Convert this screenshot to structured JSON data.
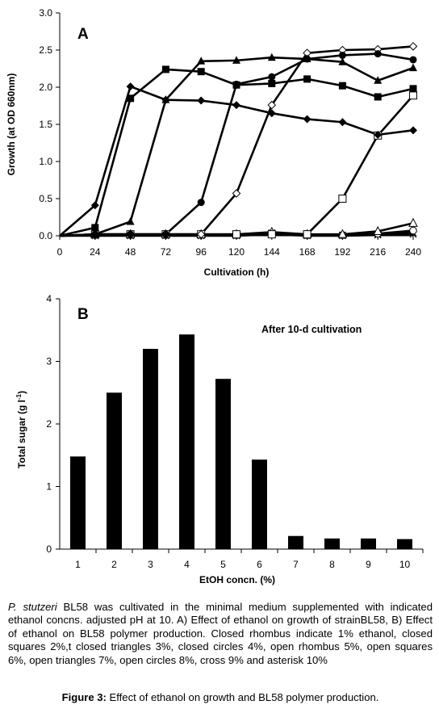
{
  "chart_data": [
    {
      "type": "line",
      "panel_label": "A",
      "xlabel": "Cultivation (h)",
      "ylabel": "Growth (at OD 660nm)",
      "xlim": [
        0,
        240
      ],
      "ylim": [
        0,
        3.0
      ],
      "xticks": [
        0,
        24,
        48,
        72,
        96,
        120,
        144,
        168,
        192,
        216,
        240
      ],
      "yticks": [
        "0.0",
        "0.5",
        "1.0",
        "1.5",
        "2.0",
        "2.5",
        "3.0"
      ],
      "x": [
        0,
        24,
        48,
        72,
        96,
        120,
        144,
        168,
        192,
        216,
        240
      ],
      "series": [
        {
          "marker": "closed-rhombus",
          "values": [
            0,
            0.41,
            2.01,
            1.83,
            1.82,
            1.76,
            1.65,
            1.57,
            1.53,
            1.36,
            1.42
          ]
        },
        {
          "marker": "closed-square",
          "values": [
            0,
            0.11,
            1.85,
            2.24,
            2.21,
            2.03,
            2.05,
            2.11,
            2.02,
            1.87,
            1.98
          ]
        },
        {
          "marker": "closed-triangle",
          "values": [
            0,
            0.02,
            0.19,
            1.83,
            2.35,
            2.36,
            2.4,
            2.38,
            2.34,
            2.09,
            2.26
          ]
        },
        {
          "marker": "closed-circle",
          "values": [
            0,
            0.02,
            0.02,
            0.02,
            0.45,
            2.04,
            2.14,
            2.38,
            2.43,
            2.45,
            2.37
          ]
        },
        {
          "marker": "open-rhombus",
          "values": [
            0,
            0.02,
            0.02,
            0.02,
            0.02,
            0.57,
            1.76,
            2.46,
            2.5,
            2.51,
            2.55
          ]
        },
        {
          "marker": "open-square",
          "values": [
            0,
            0.02,
            0.02,
            0.02,
            0.02,
            0.02,
            0.02,
            0.02,
            0.5,
            1.35,
            1.89
          ]
        },
        {
          "marker": "open-triangle",
          "values": [
            0,
            0.02,
            0.02,
            0.02,
            0.02,
            0.02,
            0.05,
            0.02,
            0.02,
            0.06,
            0.17
          ]
        },
        {
          "marker": "open-circle",
          "values": [
            0,
            0.01,
            0.01,
            0.01,
            0.01,
            0.01,
            0.03,
            0.01,
            0.01,
            0.03,
            0.07
          ]
        },
        {
          "marker": "cross",
          "values": [
            0,
            0.01,
            0.01,
            0.01,
            0.01,
            0.01,
            0.04,
            0.01,
            0.01,
            0.02,
            0.04
          ]
        },
        {
          "marker": "asterisk",
          "values": [
            0,
            0.0,
            0.0,
            0.0,
            0.0,
            0.0,
            0.02,
            0.0,
            0.0,
            0.01,
            0.02
          ]
        }
      ],
      "grid": false
    },
    {
      "type": "bar",
      "panel_label": "B",
      "annotation": "After 10-d cultivation",
      "xlabel": "EtOH concn. (%)",
      "ylabel_main": "Total sugar (g l",
      "ylabel_sup": "-1",
      "ylabel_end": ")",
      "categories": [
        "1",
        "2",
        "3",
        "4",
        "5",
        "6",
        "7",
        "8",
        "9",
        "10"
      ],
      "values": [
        1.48,
        2.5,
        3.2,
        3.43,
        2.72,
        1.43,
        0.21,
        0.17,
        0.17,
        0.16
      ],
      "ylim": [
        0,
        4
      ],
      "yticks": [
        "0",
        "1",
        "2",
        "3",
        "4"
      ],
      "bar_color": "#000000",
      "grid": false
    }
  ],
  "caption": {
    "species": "P. stutzeri",
    "body": " BL58 was cultivated in the minimal medium supplemented with indicated ethanol concns. adjusted pH at 10. A) Effect of ethanol on growth of strainBL58, B) Effect of ethanol on BL58 polymer production. Closed rhombus indicate 1% ethanol, closed squares 2%,t closed triangles 3%, closed circles 4%, open rhombus 5%, open squares 6%, open triangles 7%, open circles 8%, cross 9% and asterisk 10%",
    "figure_label": "Figure 3:",
    "figure_title": " Effect of ethanol on growth and BL58 polymer production."
  }
}
